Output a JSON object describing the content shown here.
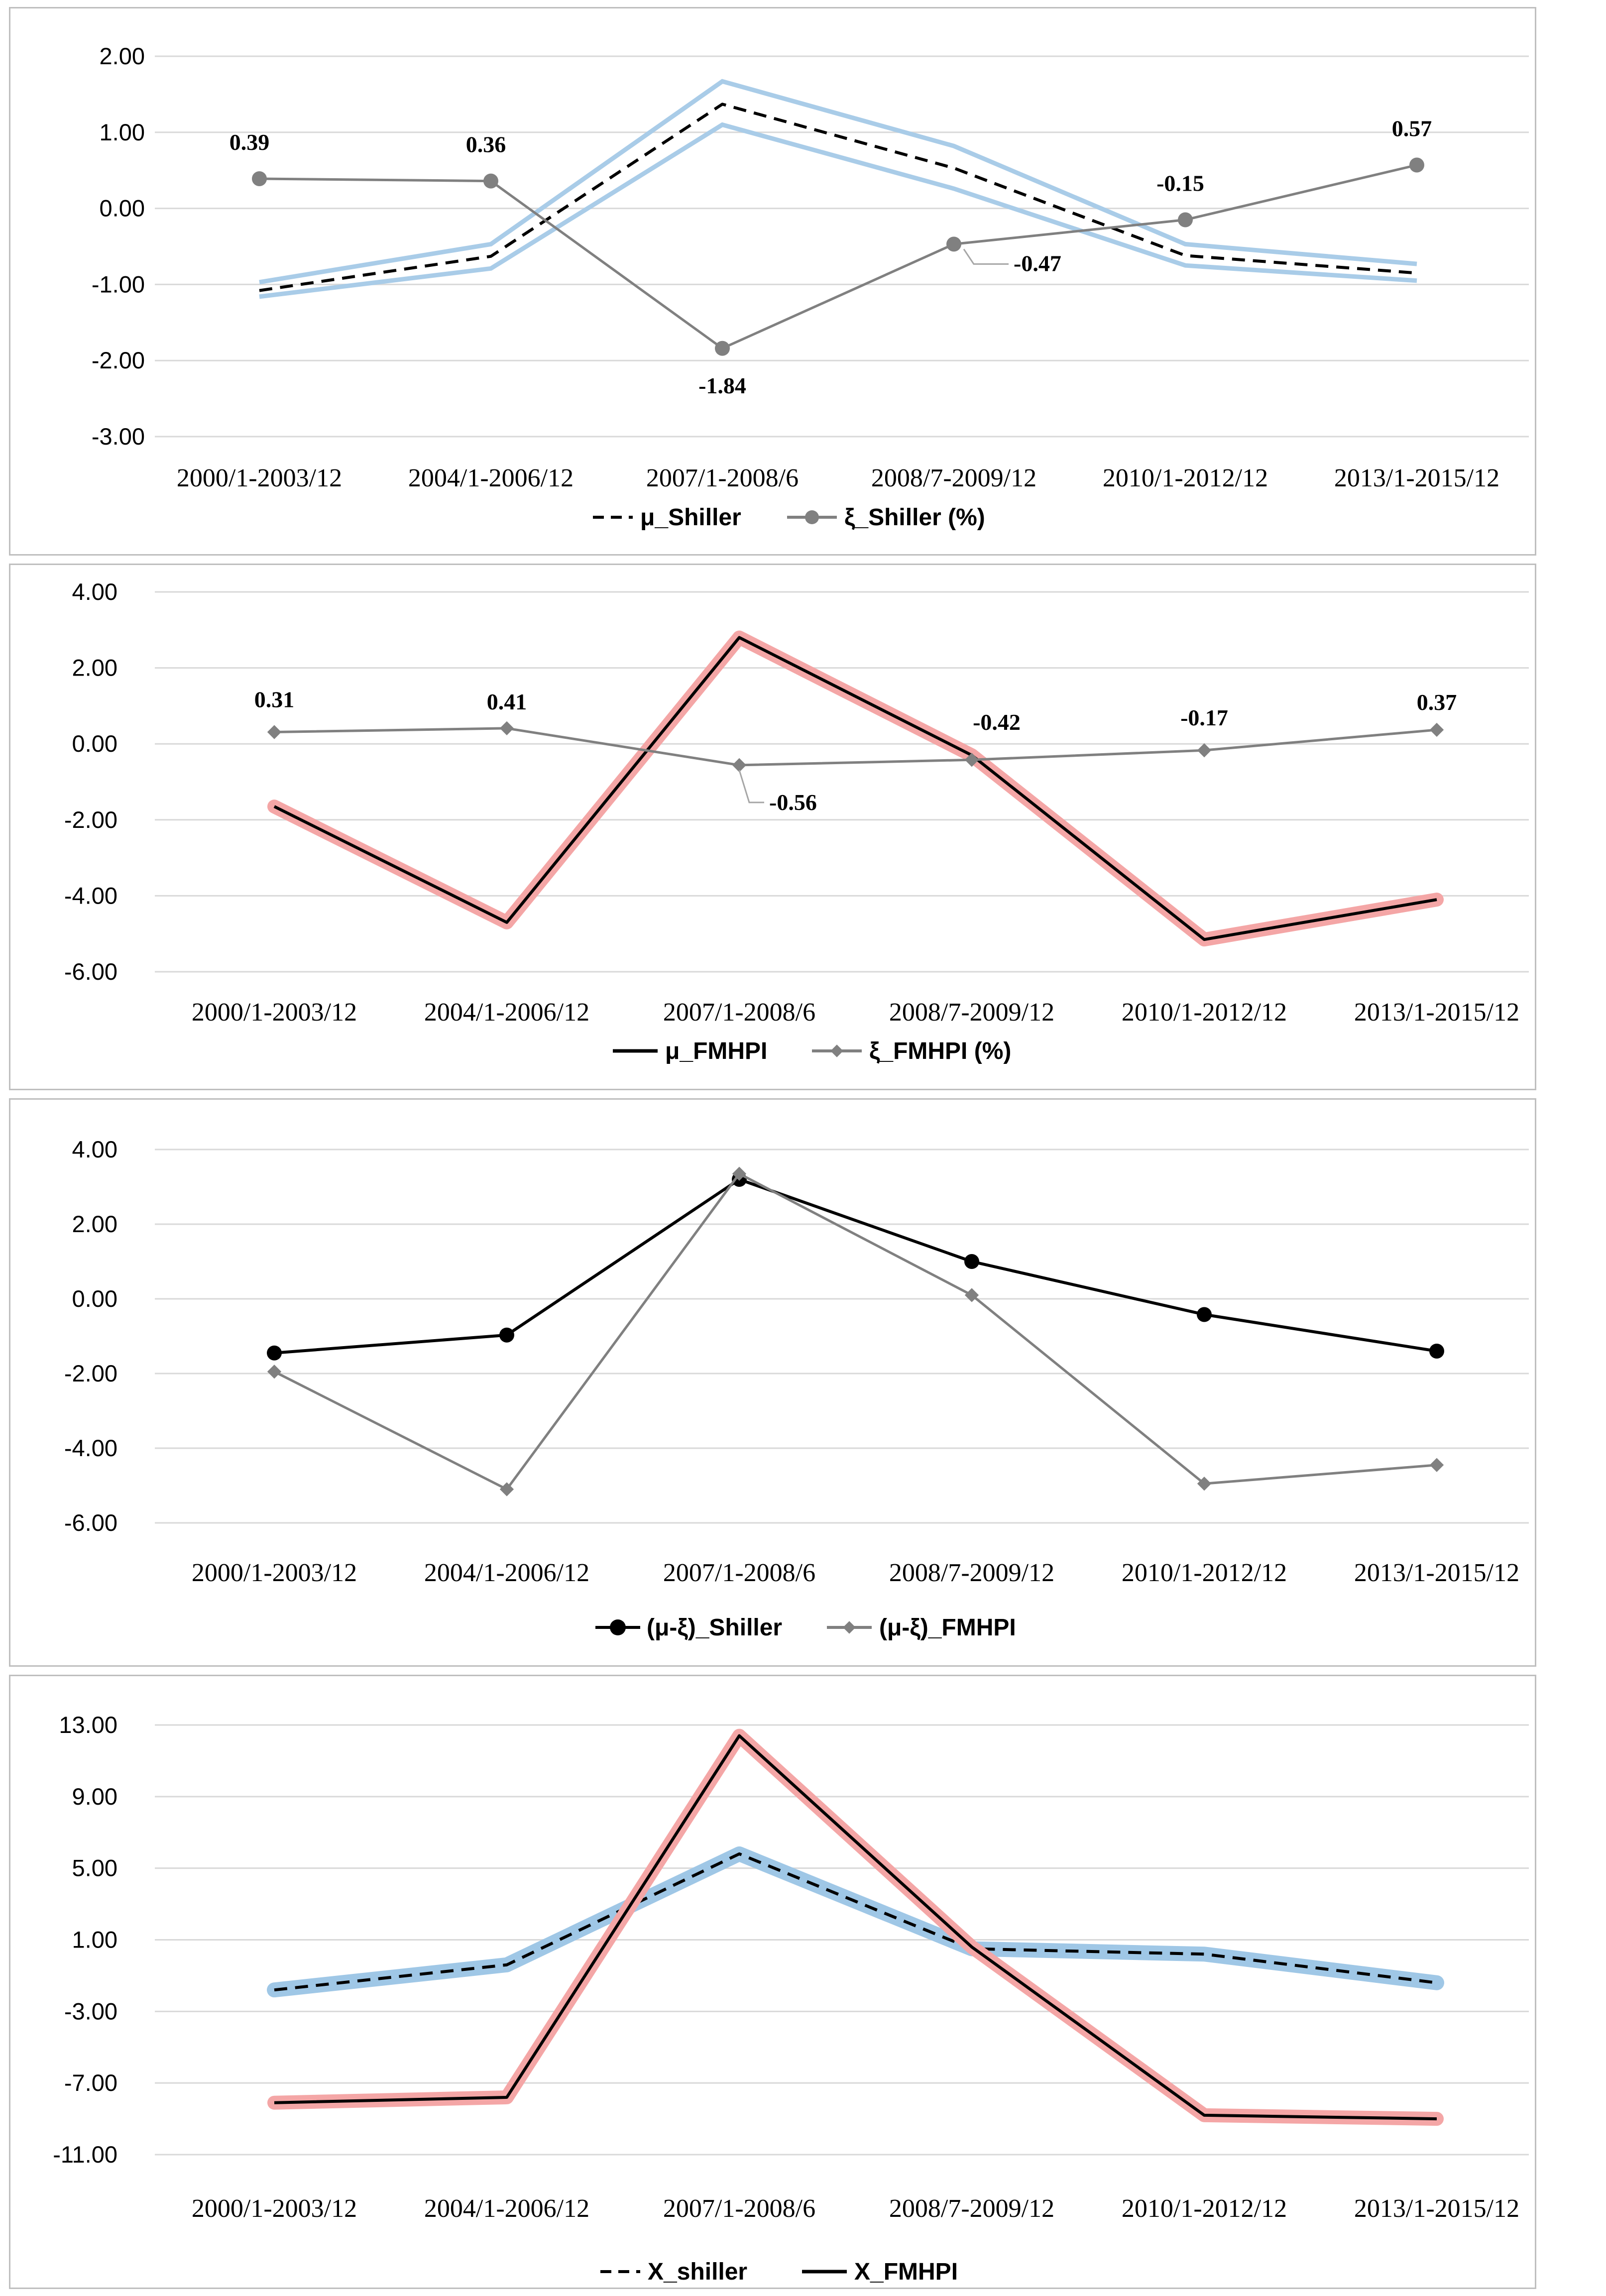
{
  "chart_data": [
    {
      "type": "line",
      "categories": [
        "2000/1-2003/12",
        "2004/1-2006/12",
        "2007/1-2008/6",
        "2008/7-2009/12",
        "2010/1-2012/12",
        "2013/1-2015/12"
      ],
      "yticks": [
        "2.00",
        "1.00",
        "0.00",
        "-1.00",
        "-2.00",
        "-3.00"
      ],
      "ylim": [
        -3,
        2
      ],
      "series": [
        {
          "name": "μ_Shiller",
          "values": [
            -1.08,
            -0.63,
            1.37,
            0.53,
            -0.62,
            -0.85
          ],
          "style": "dashed-black",
          "band": {
            "upper": [
              -0.97,
              -0.47,
              1.67,
              0.82,
              -0.47,
              -0.73
            ],
            "lower": [
              -1.16,
              -0.79,
              1.1,
              0.26,
              -0.75,
              -0.95
            ]
          }
        },
        {
          "name": "ξ_Shiller (%)",
          "values": [
            0.39,
            0.36,
            -1.84,
            -0.47,
            -0.15,
            0.57
          ],
          "style": "gray-circle",
          "labels": [
            "0.39",
            "0.36",
            "-1.84",
            "-0.47",
            "-0.15",
            "0.57"
          ]
        }
      ],
      "legend": [
        "μ_Shiller",
        "ξ_Shiller (%)"
      ],
      "grid": true,
      "legend_position": "bottom"
    },
    {
      "type": "line",
      "categories": [
        "2000/1-2003/12",
        "2004/1-2006/12",
        "2007/1-2008/6",
        "2008/7-2009/12",
        "2010/1-2012/12",
        "2013/1-2015/12"
      ],
      "yticks": [
        "4.00",
        "2.00",
        "0.00",
        "-2.00",
        "-4.00",
        "-6.00"
      ],
      "ylim": [
        -6,
        4
      ],
      "series": [
        {
          "name": "μ_FMHPI",
          "values": [
            -1.65,
            -4.7,
            2.8,
            -0.3,
            -5.15,
            -4.1
          ],
          "style": "black-red-glow"
        },
        {
          "name": "ξ_FMHPI (%)",
          "values": [
            0.31,
            0.41,
            -0.56,
            -0.42,
            -0.17,
            0.37
          ],
          "style": "gray-diamond",
          "labels": [
            "0.31",
            "0.41",
            "-0.56",
            "-0.42",
            "-0.17",
            "0.37"
          ]
        }
      ],
      "legend": [
        "μ_FMHPI",
        "ξ_FMHPI (%)"
      ],
      "grid": true,
      "legend_position": "bottom"
    },
    {
      "type": "line",
      "categories": [
        "2000/1-2003/12",
        "2004/1-2006/12",
        "2007/1-2008/6",
        "2008/7-2009/12",
        "2010/1-2012/12",
        "2013/1-2015/12"
      ],
      "yticks": [
        "4.00",
        "2.00",
        "0.00",
        "-2.00",
        "-4.00",
        "-6.00"
      ],
      "ylim": [
        -6,
        4
      ],
      "series": [
        {
          "name": "(μ-ξ)_Shiller",
          "values": [
            -1.45,
            -0.97,
            3.2,
            1.0,
            -0.42,
            -1.4
          ],
          "style": "black-circle"
        },
        {
          "name": "(μ-ξ)_FMHPI",
          "values": [
            -1.95,
            -5.1,
            3.35,
            0.1,
            -4.95,
            -4.45
          ],
          "style": "gray-diamond"
        }
      ],
      "legend": [
        "(μ-ξ)_Shiller",
        "(μ-ξ)_FMHPI"
      ],
      "grid": true,
      "legend_position": "bottom"
    },
    {
      "type": "line",
      "categories": [
        "2000/1-2003/12",
        "2004/1-2006/12",
        "2007/1-2008/6",
        "2008/7-2009/12",
        "2010/1-2012/12",
        "2013/1-2015/12"
      ],
      "yticks": [
        "13.00",
        "9.00",
        "5.00",
        "1.00",
        "-3.00",
        "-7.00",
        "-11.00"
      ],
      "ylim": [
        -11,
        13
      ],
      "series": [
        {
          "name": "Χ_shiller",
          "values": [
            -1.8,
            -0.4,
            5.8,
            0.5,
            0.2,
            -1.4
          ],
          "style": "dashed-black-blue-glow"
        },
        {
          "name": "Χ_FMHPI",
          "values": [
            -8.1,
            -7.8,
            12.4,
            0.6,
            -8.8,
            -9.0
          ],
          "style": "black-red-glow"
        }
      ],
      "legend": [
        "Χ_shiller",
        "Χ_FMHPI"
      ],
      "grid": true,
      "legend_position": "bottom"
    }
  ]
}
